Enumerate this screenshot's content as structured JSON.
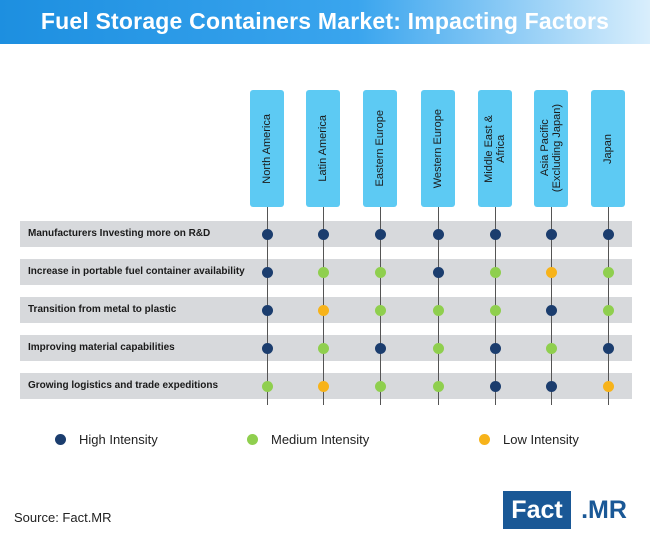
{
  "title": "Fuel Storage Containers Market: Impacting Factors",
  "regions": [
    "North America",
    "Latin America",
    "Eastern Europe",
    "Western Europe",
    "Middle East &\nAfrica",
    "Asia Pacific\n(Excluding Japan)",
    "Japan"
  ],
  "factors": [
    {
      "label": "Manufacturers Investing more on R&D",
      "intensity": [
        "high",
        "high",
        "high",
        "high",
        "high",
        "high",
        "high"
      ]
    },
    {
      "label": "Increase in portable fuel container availability",
      "intensity": [
        "high",
        "medium",
        "medium",
        "high",
        "medium",
        "low",
        "medium"
      ]
    },
    {
      "label": "Transition from metal to plastic",
      "intensity": [
        "high",
        "low",
        "medium",
        "medium",
        "medium",
        "high",
        "medium"
      ]
    },
    {
      "label": "Improving material capabilities",
      "intensity": [
        "high",
        "medium",
        "high",
        "medium",
        "high",
        "medium",
        "high"
      ]
    },
    {
      "label": "Growing logistics and trade expeditions",
      "intensity": [
        "medium",
        "low",
        "medium",
        "medium",
        "high",
        "high",
        "low"
      ]
    }
  ],
  "colors": {
    "high": "#1b3d6e",
    "medium": "#8fcf4e",
    "low": "#f7b31a"
  },
  "legend": [
    {
      "key": "high",
      "label": "High Intensity"
    },
    {
      "key": "medium",
      "label": "Medium Intensity"
    },
    {
      "key": "low",
      "label": "Low Intensity"
    }
  ],
  "source": "Source: Fact.MR",
  "logo": {
    "part1": "Fact",
    "part2": ".MR"
  }
}
